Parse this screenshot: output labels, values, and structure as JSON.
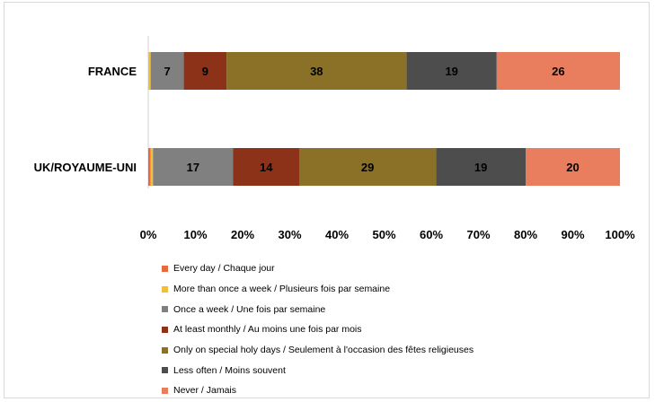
{
  "chart_data": {
    "type": "bar",
    "orientation": "horizontal",
    "stacked": "percent",
    "categories": [
      "FRANCE",
      "UK/ROYAUME-UNI"
    ],
    "series": [
      {
        "name": "Every day / Chaque jour",
        "color": "#E8693F",
        "values": [
          0,
          0.5
        ],
        "labels": [
          "",
          ""
        ]
      },
      {
        "name": "More than once a week / Plusieurs fois par semaine",
        "color": "#F2C037",
        "values": [
          0.5,
          0.5
        ],
        "labels": [
          "",
          ""
        ]
      },
      {
        "name": "Once a week / Une fois par semaine",
        "color": "#808080",
        "values": [
          7,
          17
        ],
        "labels": [
          "7",
          "17"
        ]
      },
      {
        "name": "At least monthly / Au moins une fois par mois",
        "color": "#8B3219",
        "values": [
          9,
          14
        ],
        "labels": [
          "9",
          "14"
        ]
      },
      {
        "name": "Only on special holy days / Seulement à l'occasion des fêtes religieuses",
        "color": "#8B7128",
        "values": [
          38,
          29
        ],
        "labels": [
          "38",
          "29"
        ]
      },
      {
        "name": "Less often / Moins souvent",
        "color": "#4D4D4D",
        "values": [
          19,
          19
        ],
        "labels": [
          "19",
          "19"
        ]
      },
      {
        "name": "Never / Jamais",
        "color": "#E97E5E",
        "values": [
          26,
          20
        ],
        "labels": [
          "26",
          "20"
        ]
      }
    ],
    "xticks": [
      "0%",
      "10%",
      "20%",
      "30%",
      "40%",
      "50%",
      "60%",
      "70%",
      "80%",
      "90%",
      "100%"
    ],
    "xlim": [
      0,
      100
    ],
    "legend_position": "bottom"
  }
}
